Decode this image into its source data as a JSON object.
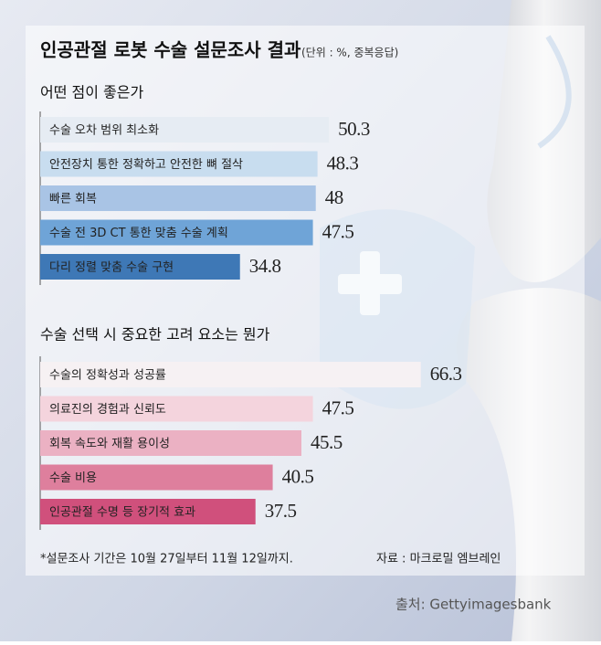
{
  "title": "인공관절 로봇 수술 설문조사 결과",
  "unit": "(단위 : %, 중복응답)",
  "chart_data": [
    {
      "type": "bar",
      "title": "어떤 점이 좋은가",
      "categories": [
        "수술 오차 범위 최소화",
        "안전장치 통한 정확하고 안전한 뼈 절삭",
        "빠른 회복",
        "수술 전 3D CT 통한 맞춤 수술 계획",
        "다리 정렬 맞춤 수술 구현"
      ],
      "values": [
        50.3,
        48.3,
        48,
        47.5,
        34.8
      ],
      "colors": [
        "#e6ecf3",
        "#c8ddef",
        "#a9c4e5",
        "#6fa4d7",
        "#3e78b6"
      ],
      "xlim": [
        0,
        70
      ]
    },
    {
      "type": "bar",
      "title": "수술 선택 시 중요한 고려 요소는 뭔가",
      "categories": [
        "수술의 정확성과 성공률",
        "의료진의 경험과 신뢰도",
        "회복 속도와 재활 용이성",
        "수술 비용",
        "인공관절 수명 등 장기적 효과"
      ],
      "values": [
        66.3,
        47.5,
        45.5,
        40.5,
        37.5
      ],
      "colors": [
        "#f6f1f3",
        "#f4d4dd",
        "#ebb1c3",
        "#de7f9d",
        "#d0507c"
      ],
      "xlim": [
        0,
        70
      ]
    }
  ],
  "footnote": "*설문조사 기간은 10월 27일부터 11월 12일까지.",
  "source": "자료 : 마크로밀 엠브레인",
  "credit": "출처: Gettyimagesbank"
}
